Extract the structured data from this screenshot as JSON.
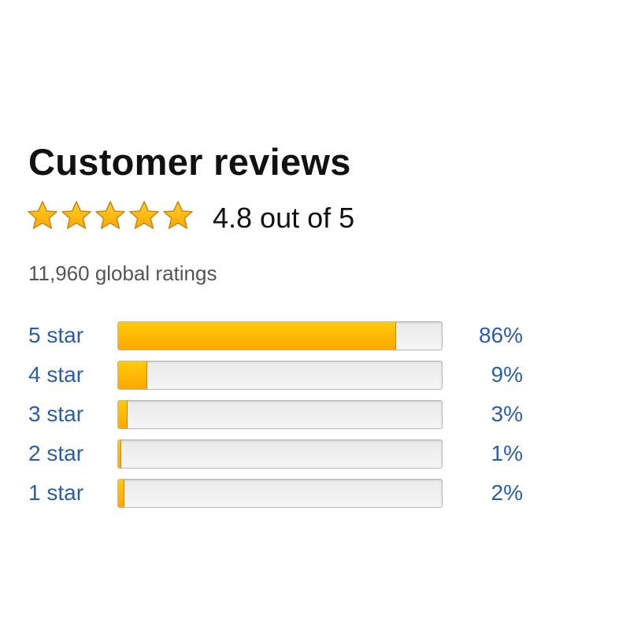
{
  "title": "Customer reviews",
  "rating": {
    "value": 4.8,
    "stars_filled": 5,
    "text": "4.8 out of 5"
  },
  "total_ratings": "11,960 global ratings",
  "colors": {
    "star": "#ffb400",
    "bar_fill": "#ffa800",
    "link": "#2a5ea8"
  },
  "histogram": [
    {
      "label": "5 star",
      "percent": 86,
      "percent_text": "86%"
    },
    {
      "label": "4 star",
      "percent": 9,
      "percent_text": "9%"
    },
    {
      "label": "3 star",
      "percent": 3,
      "percent_text": "3%"
    },
    {
      "label": "2 star",
      "percent": 1,
      "percent_text": "1%"
    },
    {
      "label": "1 star",
      "percent": 2,
      "percent_text": "2%"
    }
  ]
}
